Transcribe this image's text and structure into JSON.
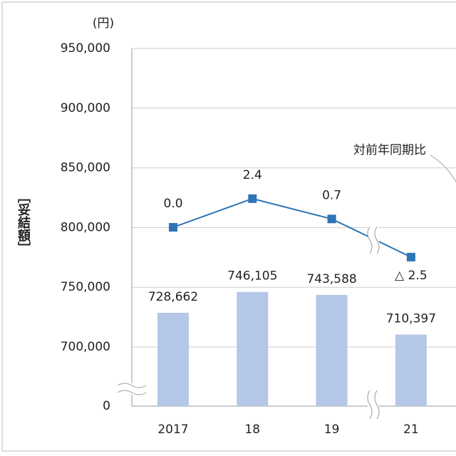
{
  "chart_data": {
    "type": "bar-line",
    "y_unit": "(円)",
    "y_label": "［妥結額］",
    "annotation": "対前年同期比",
    "categories": [
      "2017",
      "18",
      "19",
      "21"
    ],
    "series": [
      {
        "type": "bar",
        "color": "#b4c7e7",
        "values": [
          728662,
          746105,
          743588,
          710397
        ],
        "value_labels": [
          "728,662",
          "746,105",
          "743,588",
          "710,397"
        ]
      },
      {
        "type": "line",
        "axis": "y2",
        "color": "#2e75b6",
        "values": [
          0,
          2.4,
          0.7,
          -2.5
        ],
        "value_labels": [
          "0.0",
          "2.4",
          "0.7",
          "△ 2.5"
        ]
      }
    ],
    "ylim": [
      0,
      950000
    ],
    "axis_break": [
      0,
      700000
    ],
    "yticks": [
      0,
      {
        "value": 700000,
        "label": "700,000"
      },
      {
        "value": 750000,
        "label": "750,000"
      },
      {
        "value": 800000,
        "label": "800,000"
      },
      {
        "value": 850000,
        "label": "850,000"
      },
      {
        "value": 900000,
        "label": "900,000"
      },
      {
        "value": 950000,
        "label": "950,000"
      }
    ],
    "y2lim": [
      -15,
      15
    ],
    "grid": true
  }
}
